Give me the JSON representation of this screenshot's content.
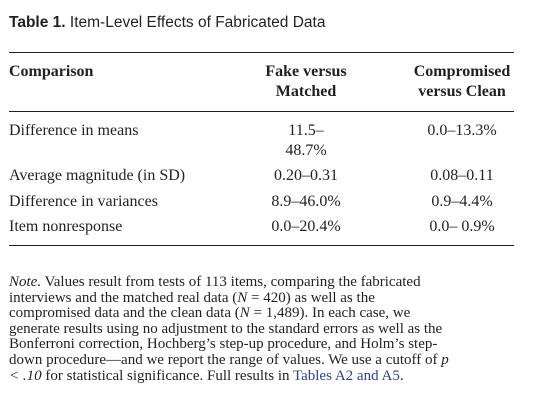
{
  "caption": {
    "lead": "Table 1.",
    "title": "Item-Level Effects of Fabricated Data"
  },
  "table": {
    "headers": {
      "comparison": "Comparison",
      "fake_line1": "Fake versus",
      "fake_line2": "Matched",
      "comp_line1": "Compromised",
      "comp_line2": "versus Clean"
    },
    "rows": [
      {
        "label": "Difference in means",
        "fake_line1": "11.5–",
        "fake_line2": "48.7%",
        "comp": "0.0–13.3%"
      },
      {
        "label": "Average magnitude (in SD)",
        "fake_line1": "0.20–0.31",
        "comp": "0.08–0.11"
      },
      {
        "label": "Difference in variances",
        "fake_line1": "8.9–46.0%",
        "comp": "0.9–4.4%"
      },
      {
        "label": "Item nonresponse",
        "fake_line1": "0.0–20.4%",
        "comp": "0.0– 0.9%"
      }
    ]
  },
  "note": {
    "label": "Note.",
    "line1": " Values result from tests of 113 items, comparing the fabricated",
    "line2a": "interviews and the matched real data (",
    "n_symbol": "N",
    "line2b": " = 420) as well as the",
    "line3a": "compromised data and the clean data (",
    "line3b": " = 1,489). In each case, we",
    "line4": "generate results using no adjustment to the standard errors as well as the",
    "line5": "Bonferroni correction, Hochberg’s step-up procedure, and Holm’s step-",
    "line6a": "down procedure—and we report the range of values. We use a cutoff of ",
    "p_symbol": "p",
    "line7a": "< .10",
    "line7b": " for statistical significance. Full results in ",
    "link": "Tables A2 and A5",
    "line7c": "."
  }
}
